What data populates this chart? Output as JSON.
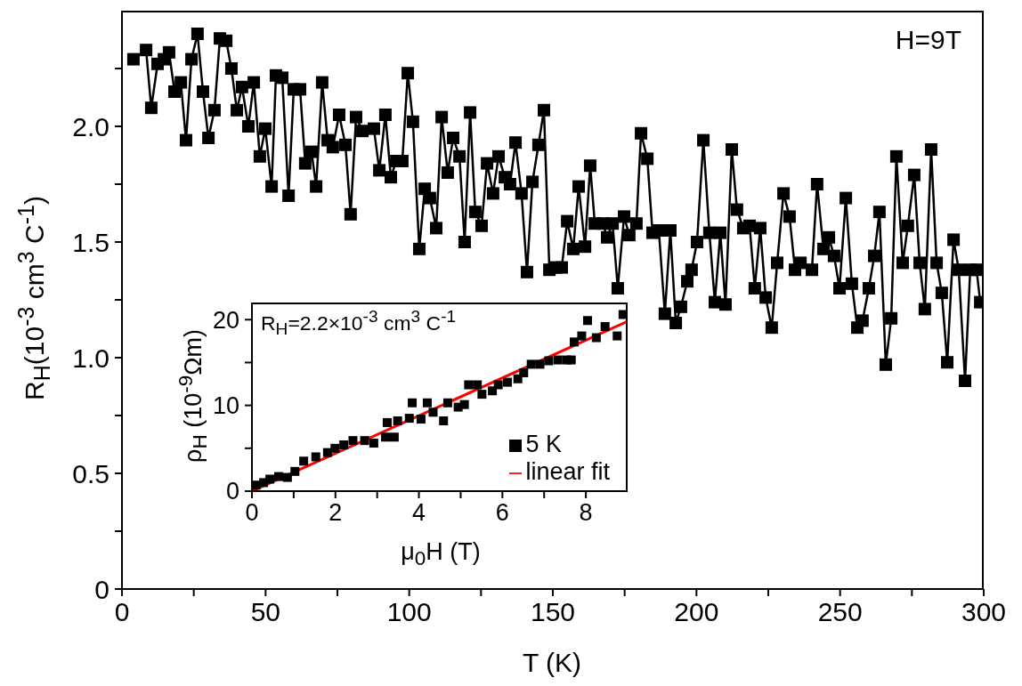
{
  "chart_data": [
    {
      "type": "line",
      "xlabel": "T (K)",
      "ylabel": "R$_{H}$(10$^{-3}$ cm$^{3}$ C$^{-1}$)",
      "annotations": [
        "H=9T"
      ],
      "xlim": [
        0,
        300
      ],
      "ylim": [
        0,
        2.5
      ],
      "xticks": [
        0,
        {
          "value": 25,
          "label": null
        },
        50,
        {
          "value": 75,
          "label": null
        },
        100,
        {
          "value": 125,
          "label": null
        },
        150,
        {
          "value": 175,
          "label": null
        },
        200,
        {
          "value": 225,
          "label": null
        },
        250,
        {
          "value": 275,
          "label": null
        },
        300
      ],
      "yticks": [
        0,
        {
          "value": 0.25,
          "label": null
        },
        0.5,
        {
          "value": 0.75,
          "label": null
        },
        {
          "value": 1,
          "label": "1.0"
        },
        {
          "value": 1.25,
          "label": null
        },
        1.5,
        {
          "value": 1.75,
          "label": null
        },
        {
          "value": 2,
          "label": "2.0"
        },
        {
          "value": 2.25,
          "label": null
        }
      ],
      "marker": "square",
      "line_style": "solid",
      "series": [
        {
          "color": "#000000",
          "x": [
            4.0,
            8.4,
            10.2,
            12.4,
            14.6,
            16.4,
            18.3,
            20.5,
            22.3,
            24.2,
            26.3,
            28.2,
            30.1,
            32.2,
            34.1,
            36.3,
            38.1,
            40.0,
            41.8,
            44.0,
            45.9,
            48.0,
            49.9,
            52.1,
            53.6,
            55.8,
            58.0,
            59.8,
            62.0,
            63.8,
            66.0,
            67.6,
            69.7,
            71.6,
            73.4,
            75.6,
            77.8,
            79.6,
            81.5,
            83.7,
            87.7,
            89.6,
            91.7,
            93.6,
            95.5,
            97.6,
            99.5,
            101.3,
            103.5,
            105.4,
            107.2,
            109.4,
            111.3,
            113.4,
            115.3,
            117.5,
            119.3,
            121.2,
            123.0,
            125.2,
            127.1,
            129.2,
            131.1,
            133.3,
            135.1,
            137.0,
            139.1,
            141.0,
            142.9,
            145.0,
            146.9,
            148.8,
            150.9,
            153.1,
            155.0,
            157.1,
            159.0,
            161.2,
            163.0,
            164.6,
            167.4,
            168.9,
            170.8,
            172.6,
            174.8,
            176.6,
            179.1,
            180.7,
            182.9,
            184.7,
            186.9,
            189.0,
            190.9,
            192.8,
            194.6,
            196.8,
            198.3,
            200.2,
            202.4,
            204.5,
            206.4,
            208.3,
            210.1,
            212.3,
            214.1,
            216.3,
            218.5,
            220.3,
            222.2,
            224.1,
            226.2,
            228.1,
            230.3,
            232.4,
            234.3,
            236.2,
            240.2,
            242.0,
            244.2,
            246.1,
            247.9,
            249.8,
            252.0,
            254.1,
            256.0,
            257.8,
            260.0,
            261.9,
            263.7,
            265.9,
            267.8,
            269.6,
            271.8,
            273.6,
            275.8,
            277.7,
            279.5,
            281.7,
            283.6,
            285.4,
            287.3,
            289.5,
            291.3,
            293.5,
            295.3,
            297.5,
            298.8
          ],
          "values": [
            2.29,
            2.33,
            2.08,
            2.27,
            2.29,
            2.32,
            2.15,
            2.19,
            1.94,
            2.29,
            2.4,
            2.15,
            1.95,
            2.07,
            2.38,
            2.37,
            2.25,
            2.07,
            2.17,
            2.0,
            2.19,
            1.87,
            1.99,
            1.74,
            2.22,
            2.21,
            1.7,
            2.16,
            2.16,
            1.84,
            1.89,
            1.74,
            2.19,
            1.94,
            1.91,
            2.05,
            1.92,
            1.62,
            2.04,
            1.98,
            1.99,
            1.81,
            2.05,
            1.78,
            1.85,
            1.85,
            2.23,
            2.02,
            1.47,
            1.73,
            1.69,
            1.56,
            2.04,
            1.8,
            1.95,
            1.87,
            1.5,
            2.06,
            1.63,
            1.57,
            1.84,
            1.71,
            1.87,
            1.78,
            1.75,
            1.93,
            1.71,
            1.37,
            1.76,
            1.92,
            2.07,
            1.38,
            1.39,
            1.39,
            1.59,
            1.47,
            1.74,
            1.48,
            1.83,
            1.58,
            1.58,
            1.52,
            1.58,
            1.3,
            1.61,
            1.53,
            1.58,
            1.97,
            1.86,
            1.54,
            1.55,
            1.19,
            1.55,
            1.15,
            1.22,
            1.33,
            1.38,
            1.5,
            1.94,
            1.54,
            1.24,
            1.54,
            1.23,
            1.9,
            1.64,
            1.56,
            1.57,
            1.3,
            1.56,
            1.26,
            1.13,
            1.41,
            1.71,
            1.61,
            1.38,
            1.41,
            1.38,
            1.75,
            1.47,
            1.52,
            1.44,
            1.3,
            1.69,
            1.32,
            1.13,
            1.16,
            1.3,
            1.44,
            1.63,
            0.97,
            1.17,
            1.87,
            1.41,
            1.57,
            1.79,
            1.41,
            1.21,
            1.9,
            1.41,
            1.28,
            0.98,
            1.51,
            1.38,
            0.9,
            1.38,
            1.38,
            1.24
          ]
        }
      ]
    },
    {
      "type": "scatter",
      "xlabel": "μ$_{0}$H (T)",
      "ylabel": "ρ$_{H}$ (10$^{-9}$Ωm)",
      "annotations": [
        "R$_{H}$=2.2×10$^{-3}$ cm$^{3}$ C$^{-1}$"
      ],
      "xlim": [
        0,
        9
      ],
      "ylim": [
        0,
        22
      ],
      "xticks": [
        0,
        {
          "value": 1,
          "label": null
        },
        2,
        {
          "value": 3,
          "label": null
        },
        4,
        {
          "value": 5,
          "label": null
        },
        6,
        {
          "value": 7,
          "label": null
        },
        8
      ],
      "yticks": [
        0,
        {
          "value": 5,
          "label": null
        },
        10,
        {
          "value": 15,
          "label": null
        },
        20
      ],
      "marker": "square",
      "legend": "bottom right",
      "series": [
        {
          "name": "5 K",
          "color": "#000000",
          "x": [
            0.1,
            0.28,
            0.43,
            0.64,
            0.85,
            1.03,
            1.24,
            1.53,
            1.81,
            1.99,
            2.2,
            2.42,
            2.7,
            2.92,
            3.2,
            3.24,
            3.41,
            3.49,
            3.77,
            3.84,
            4.05,
            4.2,
            4.34,
            4.59,
            4.69,
            4.94,
            5.09,
            5.19,
            5.4,
            5.51,
            5.76,
            5.9,
            6.12,
            6.37,
            6.51,
            6.69,
            6.9,
            7.11,
            7.33,
            7.54,
            7.65,
            7.72,
            7.9,
            8.04,
            8.25,
            8.46,
            8.75,
            8.89
          ],
          "values": [
            0.7,
            1.0,
            1.4,
            1.7,
            1.6,
            2.3,
            3.5,
            4.0,
            4.5,
            5.0,
            5.4,
            5.9,
            5.9,
            5.6,
            6.3,
            8.0,
            6.3,
            8.2,
            8.5,
            10.3,
            8.4,
            10.3,
            9.2,
            8.2,
            10.3,
            9.8,
            10.1,
            12.4,
            12.4,
            11.3,
            11.7,
            12.4,
            12.7,
            13.1,
            13.8,
            14.8,
            14.8,
            15.2,
            15.3,
            15.3,
            15.3,
            17.4,
            18.1,
            19.9,
            17.9,
            19.2,
            18.1,
            20.6
          ]
        },
        {
          "name": "linear fit",
          "type": "line",
          "color": "#ff0000",
          "marker": "none",
          "x": [
            0,
            9
          ],
          "values": [
            0,
            19.8
          ]
        }
      ]
    }
  ]
}
